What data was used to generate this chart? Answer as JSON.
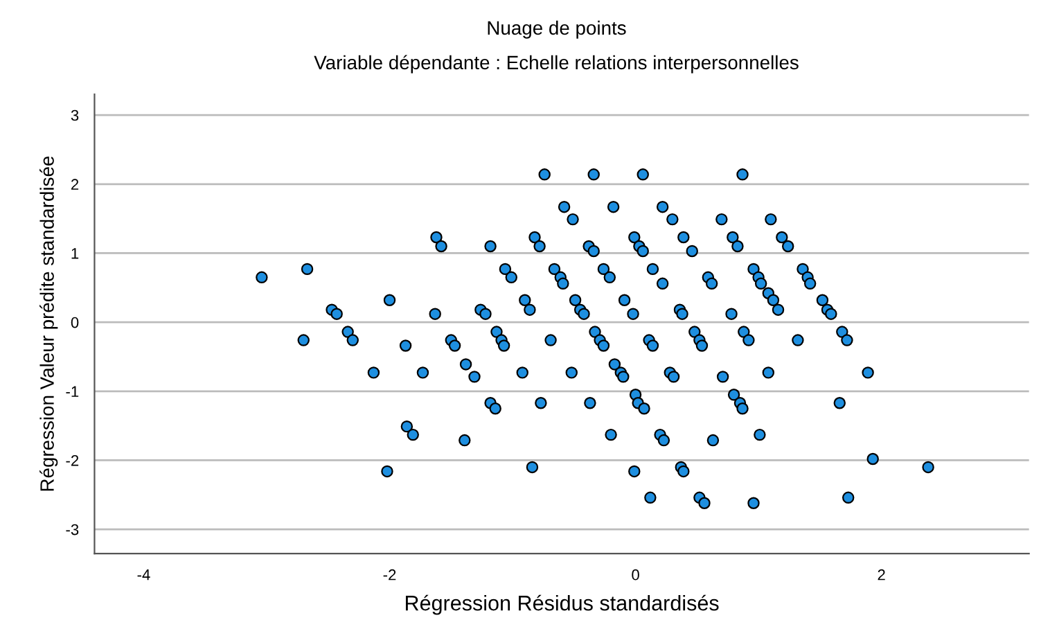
{
  "chart_data": {
    "type": "scatter",
    "title": "Nuage de points",
    "subtitle": "Variable dépendante : Echelle relations interpersonnelles",
    "xlabel": "Régression Résidus standardisés",
    "ylabel": "Régression Valeur prédite standardisée",
    "xlim": [
      -4.4,
      3.2
    ],
    "ylim": [
      -3.35,
      3.3
    ],
    "xticks": [
      -4,
      -2,
      0,
      2
    ],
    "yticks": [
      -3,
      -2,
      -1,
      0,
      1,
      2,
      3
    ],
    "grid": "y",
    "marker": "circle",
    "series": [
      {
        "color": "#1e8fe0",
        "x": [
          -0.74,
          -0.34,
          -0.58,
          -0.18,
          -0.51,
          -1.62,
          -1.58,
          -1.18,
          -0.82,
          -0.78,
          -0.38,
          -0.34,
          -0.01,
          -1.06,
          -1.01,
          -0.66,
          -0.61,
          -0.59,
          -0.26,
          -0.21,
          -0.9,
          -0.86,
          -0.49,
          -0.45,
          -0.42,
          -0.09,
          -0.02,
          -1.63,
          -1.26,
          -1.22,
          -1.87,
          -1.5,
          -1.47,
          -1.13,
          -1.09,
          -1.07,
          -0.69,
          -0.33,
          -0.29,
          -0.26,
          -1.73,
          -1.38,
          -1.31,
          -0.92,
          -0.52,
          -0.17,
          -0.12,
          -0.1,
          -1.18,
          -1.14,
          -0.77,
          -0.37,
          0.0,
          0.02,
          -1.86,
          -1.81,
          -1.39,
          -0.2,
          -0.84,
          -0.01,
          0.06,
          0.87,
          0.22,
          0.3,
          0.7,
          1.1,
          0.03,
          0.06,
          0.39,
          0.46,
          0.79,
          0.83,
          1.19,
          1.24,
          0.14,
          0.22,
          0.59,
          0.62,
          0.96,
          1.0,
          1.02,
          1.08,
          1.12,
          1.16,
          1.36,
          1.4,
          1.42,
          1.52,
          1.56,
          1.59,
          0.36,
          0.38,
          0.78,
          0.11,
          0.14,
          0.48,
          0.52,
          0.54,
          0.88,
          0.92,
          1.32,
          1.68,
          1.72,
          0.28,
          0.31,
          0.71,
          1.08,
          1.89,
          0.07,
          0.8,
          0.85,
          0.87,
          1.66,
          0.2,
          0.23,
          0.63,
          1.01,
          1.93,
          0.37,
          0.39,
          0.12,
          0.52,
          0.56,
          0.96,
          1.73,
          2.38,
          -3.04,
          -2.67,
          -2.47,
          -2.43,
          -2.0,
          -2.7,
          -2.34,
          -2.3,
          -2.13,
          -2.02
        ],
        "values": [
          2.14,
          2.14,
          1.67,
          1.67,
          1.49,
          1.23,
          1.1,
          1.1,
          1.23,
          1.1,
          1.1,
          1.03,
          1.23,
          0.77,
          0.65,
          0.77,
          0.65,
          0.56,
          0.77,
          0.65,
          0.32,
          0.18,
          0.32,
          0.18,
          0.12,
          0.32,
          0.12,
          0.12,
          0.18,
          0.12,
          -0.34,
          -0.26,
          -0.34,
          -0.14,
          -0.26,
          -0.34,
          -0.26,
          -0.14,
          -0.26,
          -0.34,
          -0.73,
          -0.61,
          -0.79,
          -0.73,
          -0.73,
          -0.61,
          -0.73,
          -0.79,
          -1.17,
          -1.25,
          -1.17,
          -1.17,
          -1.05,
          -1.17,
          -1.51,
          -1.63,
          -1.71,
          -1.63,
          -2.1,
          -2.16,
          2.14,
          2.14,
          1.67,
          1.49,
          1.49,
          1.49,
          1.1,
          1.03,
          1.23,
          1.03,
          1.23,
          1.1,
          1.23,
          1.1,
          0.77,
          0.56,
          0.65,
          0.56,
          0.77,
          0.65,
          0.56,
          0.42,
          0.32,
          0.18,
          0.77,
          0.65,
          0.56,
          0.32,
          0.18,
          0.12,
          0.18,
          0.12,
          0.12,
          -0.26,
          -0.34,
          -0.14,
          -0.26,
          -0.34,
          -0.14,
          -0.26,
          -0.26,
          -0.14,
          -0.26,
          -0.73,
          -0.79,
          -0.79,
          -0.73,
          -0.73,
          -1.25,
          -1.05,
          -1.17,
          -1.25,
          -1.17,
          -1.63,
          -1.71,
          -1.71,
          -1.63,
          -1.98,
          -2.1,
          -2.16,
          -2.54,
          -2.54,
          -2.62,
          -2.62,
          -2.54,
          -2.1,
          0.65,
          0.77,
          0.18,
          0.12,
          0.32,
          -0.26,
          -0.14,
          -0.26,
          -0.73,
          -2.16
        ]
      }
    ]
  }
}
